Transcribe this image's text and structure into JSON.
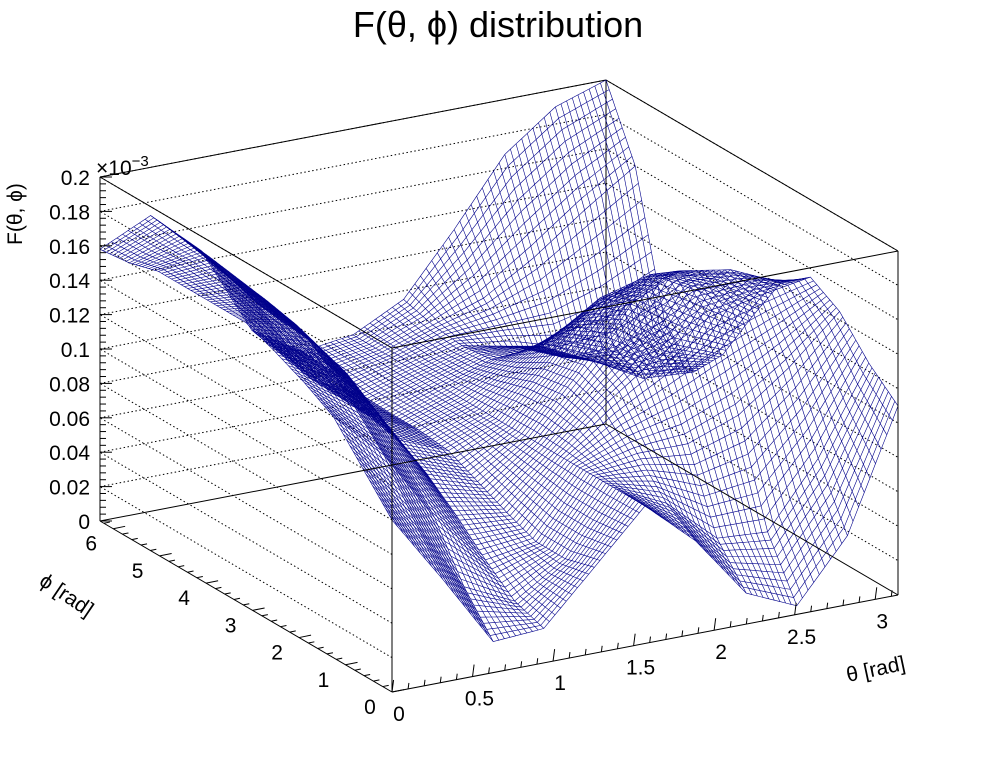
{
  "chart_data": {
    "type": "surface",
    "title": "F(θ, ϕ) distribution",
    "xlabel": "θ [rad]",
    "ylabel": "ϕ [rad]",
    "zlabel": "F(θ, ϕ)",
    "z_multiplier": "×10",
    "z_exponent": "−3",
    "xlim": [
      0,
      3.14159
    ],
    "ylim": [
      0,
      6.28319
    ],
    "zlim": [
      0,
      0.2
    ],
    "x_ticks": [
      {
        "v": 0,
        "label": "0"
      },
      {
        "v": 0.5,
        "label": "0.5"
      },
      {
        "v": 1,
        "label": "1"
      },
      {
        "v": 1.5,
        "label": "1.5"
      },
      {
        "v": 2,
        "label": "2"
      },
      {
        "v": 2.5,
        "label": "2.5"
      },
      {
        "v": 3,
        "label": "3"
      }
    ],
    "y_ticks": [
      {
        "v": 0,
        "label": "0"
      },
      {
        "v": 1,
        "label": "1"
      },
      {
        "v": 2,
        "label": "2"
      },
      {
        "v": 3,
        "label": "3"
      },
      {
        "v": 4,
        "label": "4"
      },
      {
        "v": 5,
        "label": "5"
      },
      {
        "v": 6,
        "label": "6"
      }
    ],
    "z_ticks": [
      {
        "v": 0,
        "label": "0"
      },
      {
        "v": 0.02,
        "label": "0.02"
      },
      {
        "v": 0.04,
        "label": "0.04"
      },
      {
        "v": 0.06,
        "label": "0.06"
      },
      {
        "v": 0.08,
        "label": "0.08"
      },
      {
        "v": 0.1,
        "label": "0.1"
      },
      {
        "v": 0.12,
        "label": "0.12"
      },
      {
        "v": 0.14,
        "label": "0.14"
      },
      {
        "v": 0.16,
        "label": "0.16"
      },
      {
        "v": 0.18,
        "label": "0.18"
      },
      {
        "v": 0.2,
        "label": "0.2"
      }
    ],
    "grid": true,
    "surface": {
      "x": [
        0,
        0.314,
        0.628,
        0.942,
        1.257,
        1.571,
        1.885,
        2.199,
        2.513,
        2.827,
        3.142
      ],
      "y": [
        0,
        0.628,
        1.257,
        1.885,
        2.513,
        3.142,
        3.77,
        4.398,
        5.027,
        5.655,
        6.283
      ],
      "z": [
        [
          0.1,
          0.06,
          0.018,
          0.02,
          0.05,
          0.08,
          0.054,
          0.018,
          0.005,
          0.04,
          0.11
        ],
        [
          0.12,
          0.085,
          0.04,
          0.026,
          0.045,
          0.08,
          0.066,
          0.04,
          0.038,
          0.075,
          0.125
        ],
        [
          0.14,
          0.112,
          0.07,
          0.04,
          0.045,
          0.08,
          0.085,
          0.085,
          0.096,
          0.118,
          0.145
        ],
        [
          0.15,
          0.13,
          0.092,
          0.056,
          0.052,
          0.08,
          0.105,
          0.126,
          0.143,
          0.15,
          0.155
        ],
        [
          0.158,
          0.146,
          0.112,
          0.07,
          0.06,
          0.08,
          0.112,
          0.146,
          0.16,
          0.155,
          0.142
        ],
        [
          0.165,
          0.158,
          0.124,
          0.08,
          0.068,
          0.08,
          0.108,
          0.14,
          0.148,
          0.132,
          0.112
        ],
        [
          0.165,
          0.162,
          0.13,
          0.084,
          0.07,
          0.08,
          0.098,
          0.116,
          0.112,
          0.092,
          0.08
        ],
        [
          0.165,
          0.165,
          0.132,
          0.085,
          0.07,
          0.08,
          0.09,
          0.092,
          0.078,
          0.062,
          0.06
        ],
        [
          0.165,
          0.168,
          0.134,
          0.086,
          0.071,
          0.08,
          0.088,
          0.082,
          0.07,
          0.07,
          0.08
        ],
        [
          0.16,
          0.17,
          0.14,
          0.09,
          0.074,
          0.08,
          0.09,
          0.1,
          0.118,
          0.14,
          0.16
        ],
        [
          0.158,
          0.172,
          0.146,
          0.094,
          0.076,
          0.08,
          0.095,
          0.13,
          0.168,
          0.19,
          0.2
        ]
      ]
    }
  },
  "colors": {
    "mesh": "#00008b",
    "axes": "#000000",
    "grid": "#000000",
    "background": "#ffffff"
  }
}
